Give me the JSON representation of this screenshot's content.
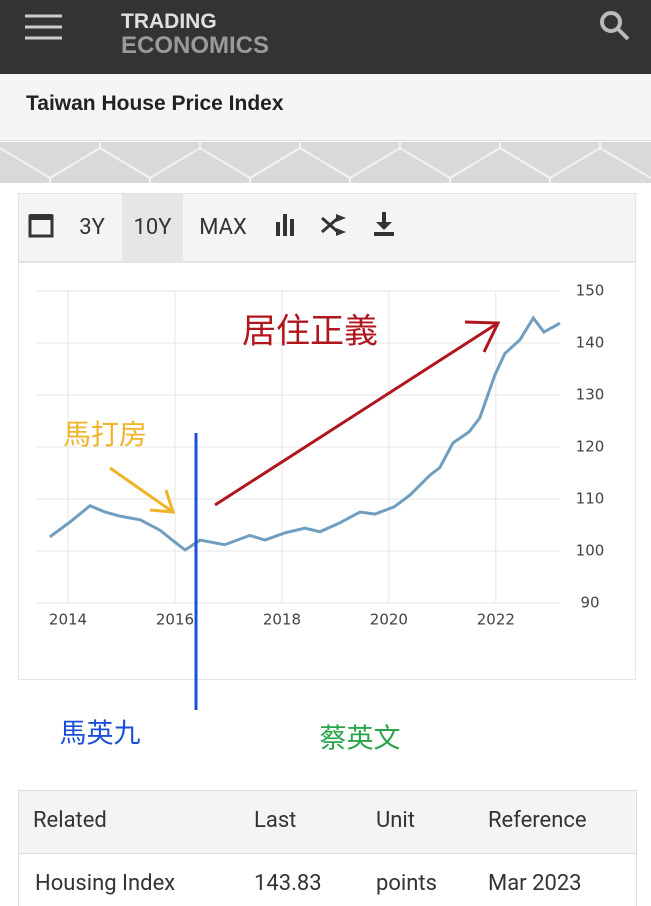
{
  "header": {
    "logo_top": "TRADING",
    "logo_bottom": "ECONOMICS",
    "title": "Taiwan House Price Index"
  },
  "toolbar": {
    "buttons": [
      "3Y",
      "10Y",
      "MAX"
    ]
  },
  "chart_data": {
    "type": "line",
    "x": [
      2013.66,
      2014.04,
      2014.41,
      2014.69,
      2014.97,
      2015.35,
      2015.72,
      2016.0,
      2016.19,
      2016.47,
      2016.93,
      2017.4,
      2017.68,
      2018.06,
      2018.43,
      2018.71,
      2019.08,
      2019.46,
      2019.74,
      2020.1,
      2020.4,
      2020.77,
      2020.95,
      2021.2,
      2021.5,
      2021.7,
      2021.98,
      2022.17,
      2022.45,
      2022.7,
      2022.9,
      2023.2
    ],
    "values": [
      102.7,
      105.6,
      108.7,
      107.5,
      106.7,
      106.0,
      104.0,
      101.7,
      100.2,
      102.1,
      101.2,
      103.0,
      102.1,
      103.5,
      104.4,
      103.7,
      105.4,
      107.5,
      107.1,
      108.5,
      110.8,
      114.6,
      116.0,
      120.8,
      122.9,
      125.6,
      133.8,
      138.0,
      140.6,
      144.8,
      142.1,
      143.8
    ],
    "color": "#6f9ec0",
    "xlim": [
      2013.42,
      2023.2
    ],
    "xticks": [
      2014,
      2016,
      2018,
      2020,
      2022
    ],
    "ylim": [
      90,
      150
    ],
    "yticks": [
      90,
      100,
      110,
      120,
      130,
      140,
      150
    ],
    "grid": true,
    "annotations": [
      "居住正義",
      "馬打房",
      "馬英九",
      "蔡英文"
    ]
  },
  "table": {
    "header": [
      "Related",
      "Last",
      "Unit",
      "Reference"
    ],
    "rows": [
      [
        "Housing Index",
        "143.83",
        "points",
        "Mar 2023"
      ]
    ]
  }
}
